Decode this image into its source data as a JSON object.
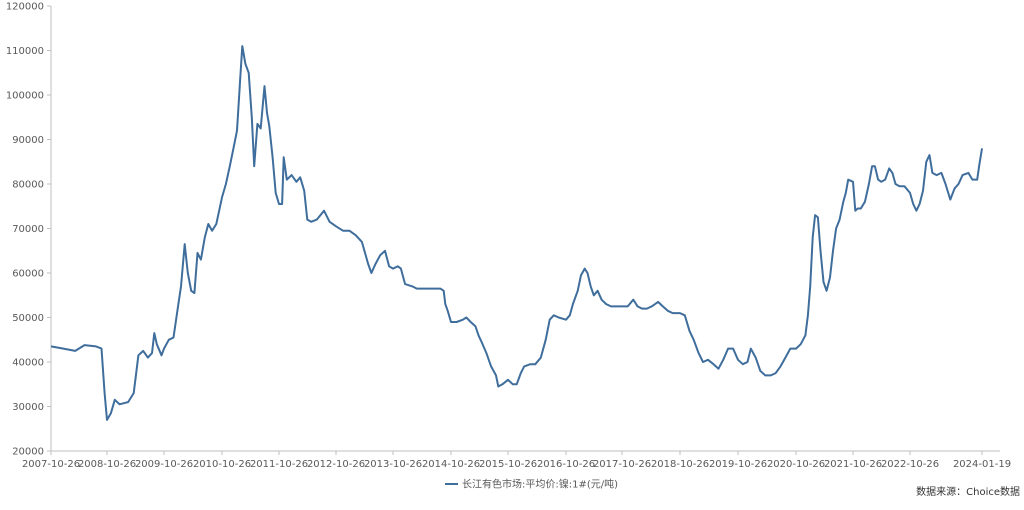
{
  "chart_data": {
    "type": "line",
    "title": "",
    "xlabel": "",
    "ylabel": "",
    "ylim": [
      20000,
      120000
    ],
    "y_ticks": [
      20000,
      30000,
      40000,
      50000,
      60000,
      70000,
      80000,
      90000,
      100000,
      110000,
      120000
    ],
    "x_ticks": [
      "2007-10-26",
      "2008-10-26",
      "2009-10-26",
      "2010-10-26",
      "2011-10-26",
      "2012-10-26",
      "2013-10-26",
      "2014-10-26",
      "2015-10-26",
      "2016-10-26",
      "2017-10-26",
      "2018-10-26",
      "2019-10-26",
      "2020-10-26",
      "2021-10-26",
      "2022-10-26",
      "2024-01-19"
    ],
    "grid": false,
    "legend_position": "bottom",
    "series": [
      {
        "name": "长江有色市场:平均价:镍:1#(元/吨)",
        "color": "#3f6e9c",
        "points": [
          [
            "2007-10-26",
            43500
          ],
          [
            "2008-01-15",
            43000
          ],
          [
            "2008-04-01",
            42500
          ],
          [
            "2008-06-01",
            43800
          ],
          [
            "2008-08-15",
            43500
          ],
          [
            "2008-09-20",
            43000
          ],
          [
            "2008-10-10",
            33000
          ],
          [
            "2008-10-26",
            27000
          ],
          [
            "2008-11-20",
            28500
          ],
          [
            "2008-12-15",
            31500
          ],
          [
            "2009-01-15",
            30500
          ],
          [
            "2009-03-10",
            31000
          ],
          [
            "2009-04-15",
            33000
          ],
          [
            "2009-05-15",
            41500
          ],
          [
            "2009-06-15",
            42500
          ],
          [
            "2009-07-15",
            41000
          ],
          [
            "2009-08-10",
            42000
          ],
          [
            "2009-08-25",
            46500
          ],
          [
            "2009-09-10",
            44000
          ],
          [
            "2009-10-10",
            41500
          ],
          [
            "2009-10-26",
            43000
          ],
          [
            "2009-11-25",
            45000
          ],
          [
            "2009-12-25",
            45500
          ],
          [
            "2010-01-20",
            52000
          ],
          [
            "2010-02-10",
            57000
          ],
          [
            "2010-03-05",
            66500
          ],
          [
            "2010-03-25",
            60000
          ],
          [
            "2010-04-15",
            56000
          ],
          [
            "2010-05-05",
            55500
          ],
          [
            "2010-05-25",
            64500
          ],
          [
            "2010-06-15",
            63000
          ],
          [
            "2010-07-10",
            68000
          ],
          [
            "2010-08-01",
            71000
          ],
          [
            "2010-08-25",
            69500
          ],
          [
            "2010-09-20",
            71000
          ],
          [
            "2010-10-26",
            77000
          ],
          [
            "2010-11-20",
            80000
          ],
          [
            "2010-12-15",
            84000
          ],
          [
            "2011-01-10",
            88500
          ],
          [
            "2011-01-30",
            92000
          ],
          [
            "2011-02-20",
            104000
          ],
          [
            "2011-03-05",
            111000
          ],
          [
            "2011-03-25",
            107000
          ],
          [
            "2011-04-15",
            105000
          ],
          [
            "2011-05-05",
            95000
          ],
          [
            "2011-05-20",
            84000
          ],
          [
            "2011-06-10",
            93500
          ],
          [
            "2011-07-01",
            92500
          ],
          [
            "2011-07-25",
            102000
          ],
          [
            "2011-08-10",
            96000
          ],
          [
            "2011-08-25",
            93000
          ],
          [
            "2011-09-15",
            86000
          ],
          [
            "2011-10-05",
            78000
          ],
          [
            "2011-10-26",
            75500
          ],
          [
            "2011-11-15",
            75500
          ],
          [
            "2011-11-25",
            86000
          ],
          [
            "2011-12-15",
            81000
          ],
          [
            "2012-01-15",
            82000
          ],
          [
            "2012-02-15",
            80500
          ],
          [
            "2012-03-10",
            81500
          ],
          [
            "2012-04-05",
            78500
          ],
          [
            "2012-04-25",
            72000
          ],
          [
            "2012-05-20",
            71500
          ],
          [
            "2012-06-25",
            72000
          ],
          [
            "2012-08-10",
            74000
          ],
          [
            "2012-09-15",
            71500
          ],
          [
            "2012-10-26",
            70500
          ],
          [
            "2012-12-10",
            69500
          ],
          [
            "2013-01-20",
            69500
          ],
          [
            "2013-03-01",
            68500
          ],
          [
            "2013-04-10",
            67000
          ],
          [
            "2013-05-20",
            62000
          ],
          [
            "2013-06-10",
            60000
          ],
          [
            "2013-07-05",
            62000
          ],
          [
            "2013-08-05",
            64000
          ],
          [
            "2013-09-05",
            65000
          ],
          [
            "2013-10-01",
            61500
          ],
          [
            "2013-10-26",
            61000
          ],
          [
            "2013-11-25",
            61500
          ],
          [
            "2013-12-15",
            61000
          ],
          [
            "2014-01-10",
            57500
          ],
          [
            "2014-02-25",
            57000
          ],
          [
            "2014-03-25",
            56500
          ],
          [
            "2014-04-25",
            56500
          ],
          [
            "2014-05-20",
            56500
          ],
          [
            "2014-06-20",
            56500
          ],
          [
            "2014-07-20",
            56500
          ],
          [
            "2014-08-20",
            56500
          ],
          [
            "2014-09-10",
            56000
          ],
          [
            "2014-09-20",
            53000
          ],
          [
            "2014-10-05",
            51500
          ],
          [
            "2014-10-26",
            49000
          ],
          [
            "2014-12-01",
            49000
          ],
          [
            "2015-01-10",
            49500
          ],
          [
            "2015-02-01",
            50000
          ],
          [
            "2015-03-01",
            49000
          ],
          [
            "2015-04-01",
            48000
          ],
          [
            "2015-04-20",
            46000
          ],
          [
            "2015-05-10",
            44500
          ],
          [
            "2015-06-10",
            42000
          ],
          [
            "2015-07-10",
            39000
          ],
          [
            "2015-08-10",
            37000
          ],
          [
            "2015-08-25",
            34500
          ],
          [
            "2015-09-20",
            35000
          ],
          [
            "2015-10-26",
            36000
          ],
          [
            "2015-11-25",
            35000
          ],
          [
            "2015-12-20",
            35000
          ],
          [
            "2016-01-15",
            37500
          ],
          [
            "2016-02-05",
            39000
          ],
          [
            "2016-03-15",
            39500
          ],
          [
            "2016-04-15",
            39500
          ],
          [
            "2016-05-20",
            41000
          ],
          [
            "2016-06-20",
            45000
          ],
          [
            "2016-07-15",
            49500
          ],
          [
            "2016-08-10",
            50500
          ],
          [
            "2016-09-10",
            50000
          ],
          [
            "2016-10-26",
            49500
          ],
          [
            "2016-11-20",
            50500
          ],
          [
            "2016-12-10",
            53000
          ],
          [
            "2017-01-10",
            56000
          ],
          [
            "2017-02-01",
            59500
          ],
          [
            "2017-02-25",
            61000
          ],
          [
            "2017-03-15",
            60000
          ],
          [
            "2017-04-05",
            57000
          ],
          [
            "2017-04-25",
            55000
          ],
          [
            "2017-05-20",
            56000
          ],
          [
            "2017-06-15",
            54000
          ],
          [
            "2017-07-15",
            53000
          ],
          [
            "2017-08-15",
            52500
          ],
          [
            "2017-09-15",
            52500
          ],
          [
            "2017-10-26",
            52500
          ],
          [
            "2017-12-01",
            52500
          ],
          [
            "2018-01-05",
            54000
          ],
          [
            "2018-02-01",
            52500
          ],
          [
            "2018-03-01",
            52000
          ],
          [
            "2018-04-01",
            52000
          ],
          [
            "2018-05-01",
            52500
          ],
          [
            "2018-06-10",
            53500
          ],
          [
            "2018-07-10",
            52500
          ],
          [
            "2018-08-10",
            51500
          ],
          [
            "2018-09-10",
            51000
          ],
          [
            "2018-10-26",
            51000
          ],
          [
            "2018-11-25",
            50500
          ],
          [
            "2018-12-25",
            47000
          ],
          [
            "2019-01-20",
            45000
          ],
          [
            "2019-02-20",
            42000
          ],
          [
            "2019-03-20",
            40000
          ],
          [
            "2019-04-20",
            40500
          ],
          [
            "2019-05-25",
            39500
          ],
          [
            "2019-06-25",
            38500
          ],
          [
            "2019-07-25",
            40500
          ],
          [
            "2019-08-25",
            43000
          ],
          [
            "2019-09-25",
            43000
          ],
          [
            "2019-10-26",
            40500
          ],
          [
            "2019-11-25",
            39500
          ],
          [
            "2019-12-25",
            40000
          ],
          [
            "2020-01-15",
            43000
          ],
          [
            "2020-02-15",
            41000
          ],
          [
            "2020-03-15",
            38000
          ],
          [
            "2020-04-15",
            37000
          ],
          [
            "2020-05-20",
            37000
          ],
          [
            "2020-06-20",
            37500
          ],
          [
            "2020-07-20",
            39000
          ],
          [
            "2020-08-20",
            41000
          ],
          [
            "2020-09-20",
            43000
          ],
          [
            "2020-10-26",
            43000
          ],
          [
            "2020-11-25",
            44000
          ],
          [
            "2020-12-25",
            46000
          ],
          [
            "2021-01-10",
            50500
          ],
          [
            "2021-01-25",
            57000
          ],
          [
            "2021-02-10",
            68000
          ],
          [
            "2021-02-25",
            73000
          ],
          [
            "2021-03-15",
            72500
          ],
          [
            "2021-04-01",
            65000
          ],
          [
            "2021-04-20",
            58000
          ],
          [
            "2021-05-10",
            56000
          ],
          [
            "2021-06-01",
            59000
          ],
          [
            "2021-06-20",
            65000
          ],
          [
            "2021-07-10",
            70000
          ],
          [
            "2021-08-01",
            72000
          ],
          [
            "2021-08-25",
            76000
          ],
          [
            "2021-09-10",
            78000
          ],
          [
            "2021-09-25",
            81000
          ],
          [
            "2021-10-26",
            80500
          ],
          [
            "2021-11-10",
            74000
          ],
          [
            "2021-11-25",
            74500
          ],
          [
            "2021-12-15",
            74500
          ],
          [
            "2022-01-10",
            76000
          ],
          [
            "2022-02-05",
            80000
          ],
          [
            "2022-02-25",
            84000
          ],
          [
            "2022-03-15",
            84000
          ],
          [
            "2022-04-05",
            81000
          ],
          [
            "2022-04-25",
            80500
          ],
          [
            "2022-05-20",
            81000
          ],
          [
            "2022-06-15",
            83500
          ],
          [
            "2022-07-05",
            82500
          ],
          [
            "2022-07-25",
            80000
          ],
          [
            "2022-08-20",
            79500
          ],
          [
            "2022-09-20",
            79500
          ],
          [
            "2022-10-26",
            78000
          ],
          [
            "2022-11-15",
            75500
          ],
          [
            "2022-12-05",
            74000
          ],
          [
            "2022-12-25",
            75500
          ],
          [
            "2023-01-15",
            78500
          ],
          [
            "2023-02-05",
            85000
          ],
          [
            "2023-02-25",
            86500
          ],
          [
            "2023-03-15",
            82500
          ],
          [
            "2023-04-10",
            82000
          ],
          [
            "2023-05-10",
            82500
          ],
          [
            "2023-06-05",
            80000
          ],
          [
            "2023-07-05",
            76500
          ],
          [
            "2023-08-01",
            79000
          ],
          [
            "2023-08-25",
            80000
          ],
          [
            "2023-09-20",
            82000
          ],
          [
            "2023-10-26",
            82500
          ],
          [
            "2023-11-20",
            81000
          ],
          [
            "2023-12-20",
            81000
          ],
          [
            "2024-01-01",
            84000
          ],
          [
            "2024-01-19",
            88000
          ]
        ]
      }
    ]
  },
  "footer": {
    "source_text": "数据来源：Choice数据"
  }
}
